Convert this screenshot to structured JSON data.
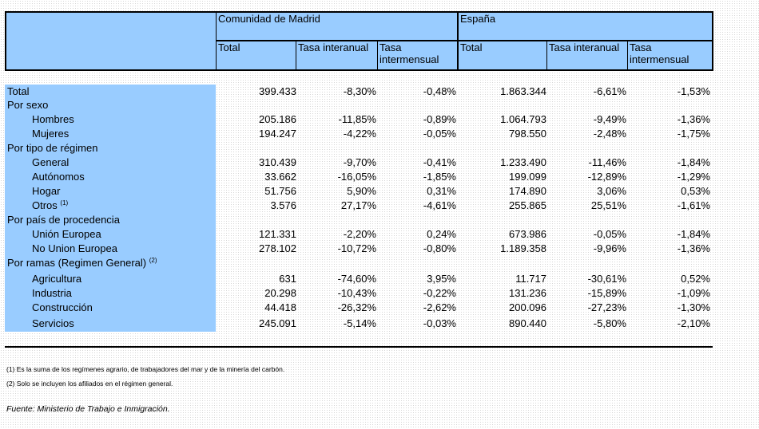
{
  "header": {
    "region1": "Comunidad de Madrid",
    "region2": "España",
    "columns": [
      "Total",
      "Tasa interanual",
      "Tasa intermensual",
      "Total",
      "Tasa interanual",
      "Tasa intermensual"
    ]
  },
  "rows": [
    {
      "label": "Total",
      "level": 0,
      "values": [
        "399.433",
        "-8,30%",
        "-0,48%",
        "1.863.344",
        "-6,61%",
        "-1,53%"
      ]
    },
    {
      "label": "Por sexo",
      "level": 0,
      "values": []
    },
    {
      "label": "Hombres",
      "level": 1,
      "values": [
        "205.186",
        "-11,85%",
        "-0,89%",
        "1.064.793",
        "-9,49%",
        "-1,36%"
      ]
    },
    {
      "label": "Mujeres",
      "level": 1,
      "values": [
        "194.247",
        "-4,22%",
        "-0,05%",
        "798.550",
        "-2,48%",
        "-1,75%"
      ]
    },
    {
      "label": "Por tipo de régimen",
      "level": 0,
      "values": []
    },
    {
      "label": "General",
      "level": 1,
      "values": [
        "310.439",
        "-9,70%",
        "-0,41%",
        "1.233.490",
        "-11,46%",
        "-1,84%"
      ]
    },
    {
      "label": "Autónomos",
      "level": 1,
      "values": [
        "33.662",
        "-16,05%",
        "-1,85%",
        "199.099",
        "-12,89%",
        "-1,29%"
      ]
    },
    {
      "label": "Hogar",
      "level": 1,
      "values": [
        "51.756",
        "5,90%",
        "0,31%",
        "174.890",
        "3,06%",
        "0,53%"
      ]
    },
    {
      "label": "Otros",
      "sup": "(1)",
      "level": 1,
      "values": [
        "3.576",
        "27,17%",
        "-4,61%",
        "255.865",
        "25,51%",
        "-1,61%"
      ]
    },
    {
      "label": "Por país de procedencia",
      "level": 0,
      "values": []
    },
    {
      "label": "Unión Europea",
      "level": 1,
      "values": [
        "121.331",
        "-2,20%",
        "0,24%",
        "673.986",
        "-0,05%",
        "-1,84%"
      ]
    },
    {
      "label": "No Union Europea",
      "level": 1,
      "values": [
        "278.102",
        "-10,72%",
        "-0,80%",
        "1.189.358",
        "-9,96%",
        "-1,36%"
      ]
    },
    {
      "label": "Por ramas (Regimen General)",
      "sup": "(2)",
      "level": 0,
      "values": []
    },
    {
      "label": "Agricultura",
      "level": 1,
      "values": [
        "631",
        "-74,60%",
        "3,95%",
        "11.717",
        "-30,61%",
        "0,52%"
      ]
    },
    {
      "label": "Industria",
      "level": 1,
      "values": [
        "20.298",
        "-10,43%",
        "-0,22%",
        "131.236",
        "-15,89%",
        "-1,09%"
      ]
    },
    {
      "label": "Construcción",
      "level": 1,
      "values": [
        "44.418",
        "-26,32%",
        "-2,62%",
        "200.096",
        "-27,23%",
        "-1,30%"
      ]
    },
    {
      "label": "Servicios",
      "level": 1,
      "values": [
        "245.091",
        "-5,14%",
        "-0,03%",
        "890.440",
        "-5,80%",
        "-2,10%"
      ]
    }
  ],
  "notes": [
    "(1) Es la suma de los regímenes  agrario, de trabajadores del mar y de la minería del carbón.",
    "(2) Solo se incluyen los afiliados en el régimen general."
  ],
  "source": "Fuente: Ministerio de Trabajo e Inmigración.",
  "colors": {
    "header_bg": "#99ccff",
    "label_bg": "#99ccff"
  }
}
